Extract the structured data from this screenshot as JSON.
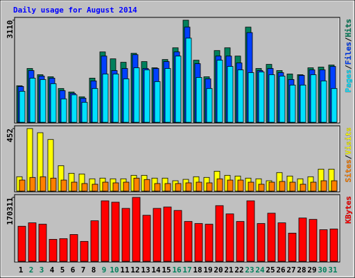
{
  "chart_data": {
    "type": "bar",
    "title": "Daily usage for August 2014",
    "categories": [
      "1",
      "2",
      "3",
      "4",
      "5",
      "6",
      "7",
      "8",
      "9",
      "10",
      "11",
      "12",
      "13",
      "14",
      "15",
      "16",
      "17",
      "18",
      "19",
      "20",
      "21",
      "22",
      "23",
      "24",
      "25",
      "26",
      "27",
      "28",
      "29",
      "30",
      "31"
    ],
    "category_colors": [
      "#000000",
      "#00805c",
      "#00805c",
      "#000000",
      "#000000",
      "#000000",
      "#000000",
      "#000000",
      "#00805c",
      "#00805c",
      "#000000",
      "#000000",
      "#000000",
      "#000000",
      "#000000",
      "#00805c",
      "#00805c",
      "#000000",
      "#000000",
      "#000000",
      "#000000",
      "#000000",
      "#00805c",
      "#00805c",
      "#000000",
      "#000000",
      "#000000",
      "#000000",
      "#000000",
      "#00805c",
      "#00805c"
    ],
    "legend_separator": "/",
    "panels": [
      {
        "ylim": [
          0,
          3110
        ],
        "yticks": [
          3110
        ],
        "series": [
          {
            "name": "Hits",
            "color": "#00805c",
            "values": [
              1114,
              1639,
              1450,
              1387,
              1030,
              924,
              777,
              1345,
              2143,
              1933,
              1828,
              2101,
              1849,
              1660,
              1912,
              2269,
              3110,
              1891,
              1387,
              2185,
              2269,
              2017,
              2899,
              1639,
              1765,
              1576,
              1471,
              1450,
              1660,
              1681,
              1744
            ]
          },
          {
            "name": "Files",
            "color": "#0040ff",
            "values": [
              1092,
              1576,
              1408,
              1345,
              966,
              882,
              735,
              1261,
              2017,
              1576,
              1639,
              2059,
              1639,
              1639,
              1849,
              2143,
              2899,
              1786,
              1324,
              2017,
              2017,
              1807,
              2731,
              1576,
              1639,
              1513,
              1303,
              1429,
              1597,
              1597,
              1702
            ]
          },
          {
            "name": "Pages",
            "color": "#00e0ff",
            "values": [
              945,
              1345,
              1303,
              1177,
              714,
              840,
              609,
              1030,
              1471,
              1471,
              1324,
              1660,
              1597,
              1240,
              1639,
              2017,
              2563,
              1366,
              1030,
              1891,
              1702,
              1597,
              1513,
              1534,
              1450,
              1408,
              1135,
              1135,
              1450,
              1261,
              1030
            ]
          }
        ]
      },
      {
        "ylim": [
          0,
          452
        ],
        "yticks": [
          452
        ],
        "series": [
          {
            "name": "Visits",
            "color": "#ffff00",
            "values": [
              104,
              452,
              422,
              373,
              184,
              129,
              124,
              89,
              94,
              89,
              89,
              114,
              114,
              94,
              94,
              75,
              85,
              104,
              99,
              144,
              114,
              109,
              94,
              89,
              75,
              134,
              109,
              89,
              104,
              159,
              159
            ]
          },
          {
            "name": "Sites",
            "color": "#ff8000",
            "values": [
              80,
              99,
              104,
              94,
              80,
              65,
              55,
              50,
              65,
              60,
              65,
              94,
              84,
              55,
              55,
              55,
              60,
              65,
              60,
              89,
              80,
              80,
              65,
              50,
              65,
              70,
              65,
              50,
              65,
              75,
              75
            ]
          }
        ]
      },
      {
        "ylim": [
          0,
          170311
        ],
        "yticks": [
          170311
        ],
        "series": [
          {
            "name": "KBytes",
            "color": "#ff0000",
            "values": [
              93381,
              102536,
              98874,
              58592,
              60423,
              71409,
              53099,
              108029,
              161128,
              157466,
              140987,
              170311,
              122677,
              140987,
              144649,
              135494,
              106198,
              100705,
              98874,
              148311,
              126339,
              106198,
              161128,
              100705,
              128170,
              102536,
              75071,
              115353,
              111691,
              84226,
              86057
            ]
          }
        ]
      }
    ]
  }
}
